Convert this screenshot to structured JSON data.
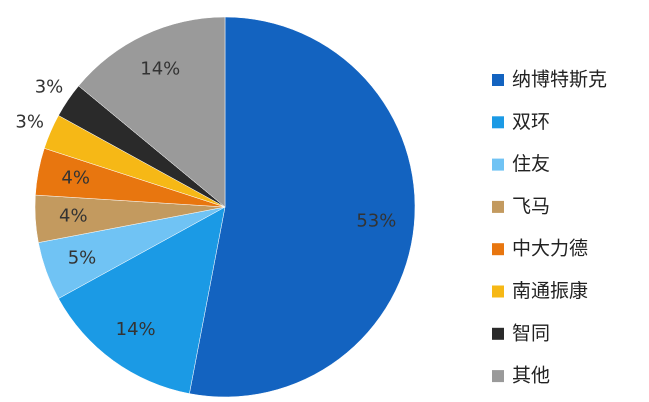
{
  "chart_data": {
    "type": "pie",
    "categories": [
      "纳博特斯克",
      "双环",
      "住友",
      "飞马",
      "中大力德",
      "南通振康",
      "智同",
      "其他"
    ],
    "values": [
      53,
      14,
      5,
      4,
      4,
      3,
      3,
      14
    ],
    "value_labels": [
      "53%",
      "14%",
      "5%",
      "4%",
      "4%",
      "3%",
      "3%",
      "14%"
    ],
    "colors": [
      "#1363c0",
      "#1b9ae5",
      "#70c3f4",
      "#c39a5f",
      "#e8760f",
      "#f6b816",
      "#2a2a2a",
      "#9a9a9a"
    ],
    "legend": "right"
  }
}
